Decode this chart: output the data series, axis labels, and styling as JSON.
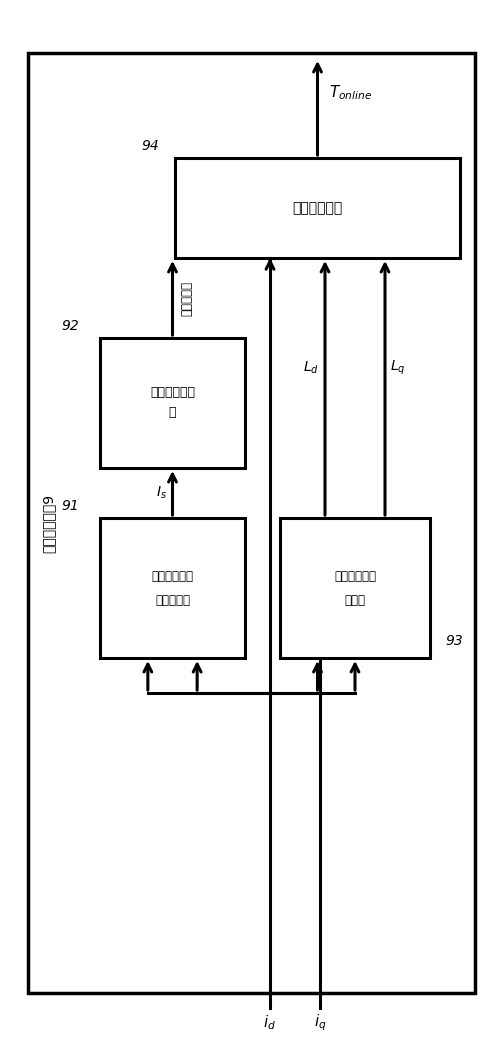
{
  "fig_width": 5.03,
  "fig_height": 10.48,
  "bg_color": "#ffffff",
  "outer_label": "转矩计算模块9",
  "label94": "转矩计算单元",
  "label92_1": "永磁体磁链查",
  "label92_2": "表",
  "label91_1": "交流相电流幅",
  "label91_2": "値计算单元",
  "label93_1": "直角轴电感查",
  "label93_2": "表单元",
  "flux_label": "永磁体磁链",
  "ref94": "94",
  "ref92": "92",
  "ref91": "91",
  "ref93": "93"
}
